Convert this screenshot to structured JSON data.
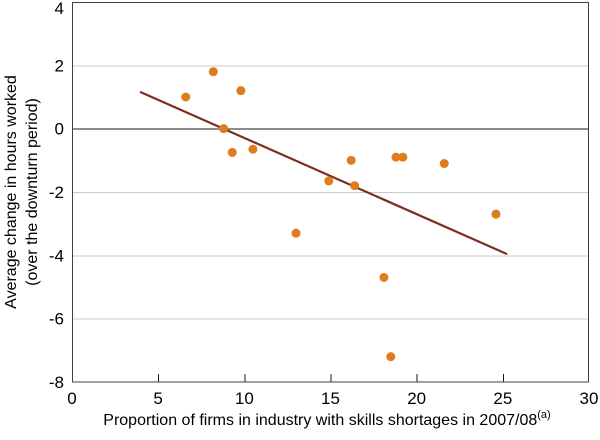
{
  "chart_data": {
    "type": "scatter",
    "xlabel": "Proportion of firms in industry with skills shortages in 2007/08",
    "xlabel_superscript": "(a)",
    "ylabel_line1": "Average change in hours worked",
    "ylabel_line2": "(over the downturn period)",
    "xlim": [
      0,
      30
    ],
    "ylim": [
      -8,
      4
    ],
    "x_ticks": [
      0,
      5,
      10,
      15,
      20,
      25,
      30
    ],
    "y_ticks": [
      4,
      2,
      0,
      -2,
      -4,
      -6,
      -8
    ],
    "grid": "horizontal gridlines at labeled y values, solid zero line",
    "legend": "none",
    "points": [
      {
        "x": 6.6,
        "y": 1.0
      },
      {
        "x": 8.2,
        "y": 1.8
      },
      {
        "x": 8.8,
        "y": 0.0
      },
      {
        "x": 9.3,
        "y": -0.75
      },
      {
        "x": 9.8,
        "y": 1.2
      },
      {
        "x": 10.5,
        "y": -0.65
      },
      {
        "x": 13.0,
        "y": -3.3
      },
      {
        "x": 14.9,
        "y": -1.65
      },
      {
        "x": 16.2,
        "y": -1.0
      },
      {
        "x": 16.4,
        "y": -1.8
      },
      {
        "x": 18.1,
        "y": -4.7
      },
      {
        "x": 18.5,
        "y": -7.2
      },
      {
        "x": 18.8,
        "y": -0.9
      },
      {
        "x": 19.2,
        "y": -0.9
      },
      {
        "x": 21.6,
        "y": -1.1
      },
      {
        "x": 24.6,
        "y": -2.7
      }
    ],
    "trend_line": {
      "x1": 4.0,
      "y1": 1.15,
      "x2": 25.2,
      "y2": -3.95
    },
    "colors": {
      "point": "#DF7C1E",
      "trend": "#7D2E1E",
      "grid": "#CBCBCB",
      "zero_line": "#1A1A1A",
      "frame": "#404040",
      "tick": "#1A1A1A",
      "text": "#000000"
    }
  }
}
